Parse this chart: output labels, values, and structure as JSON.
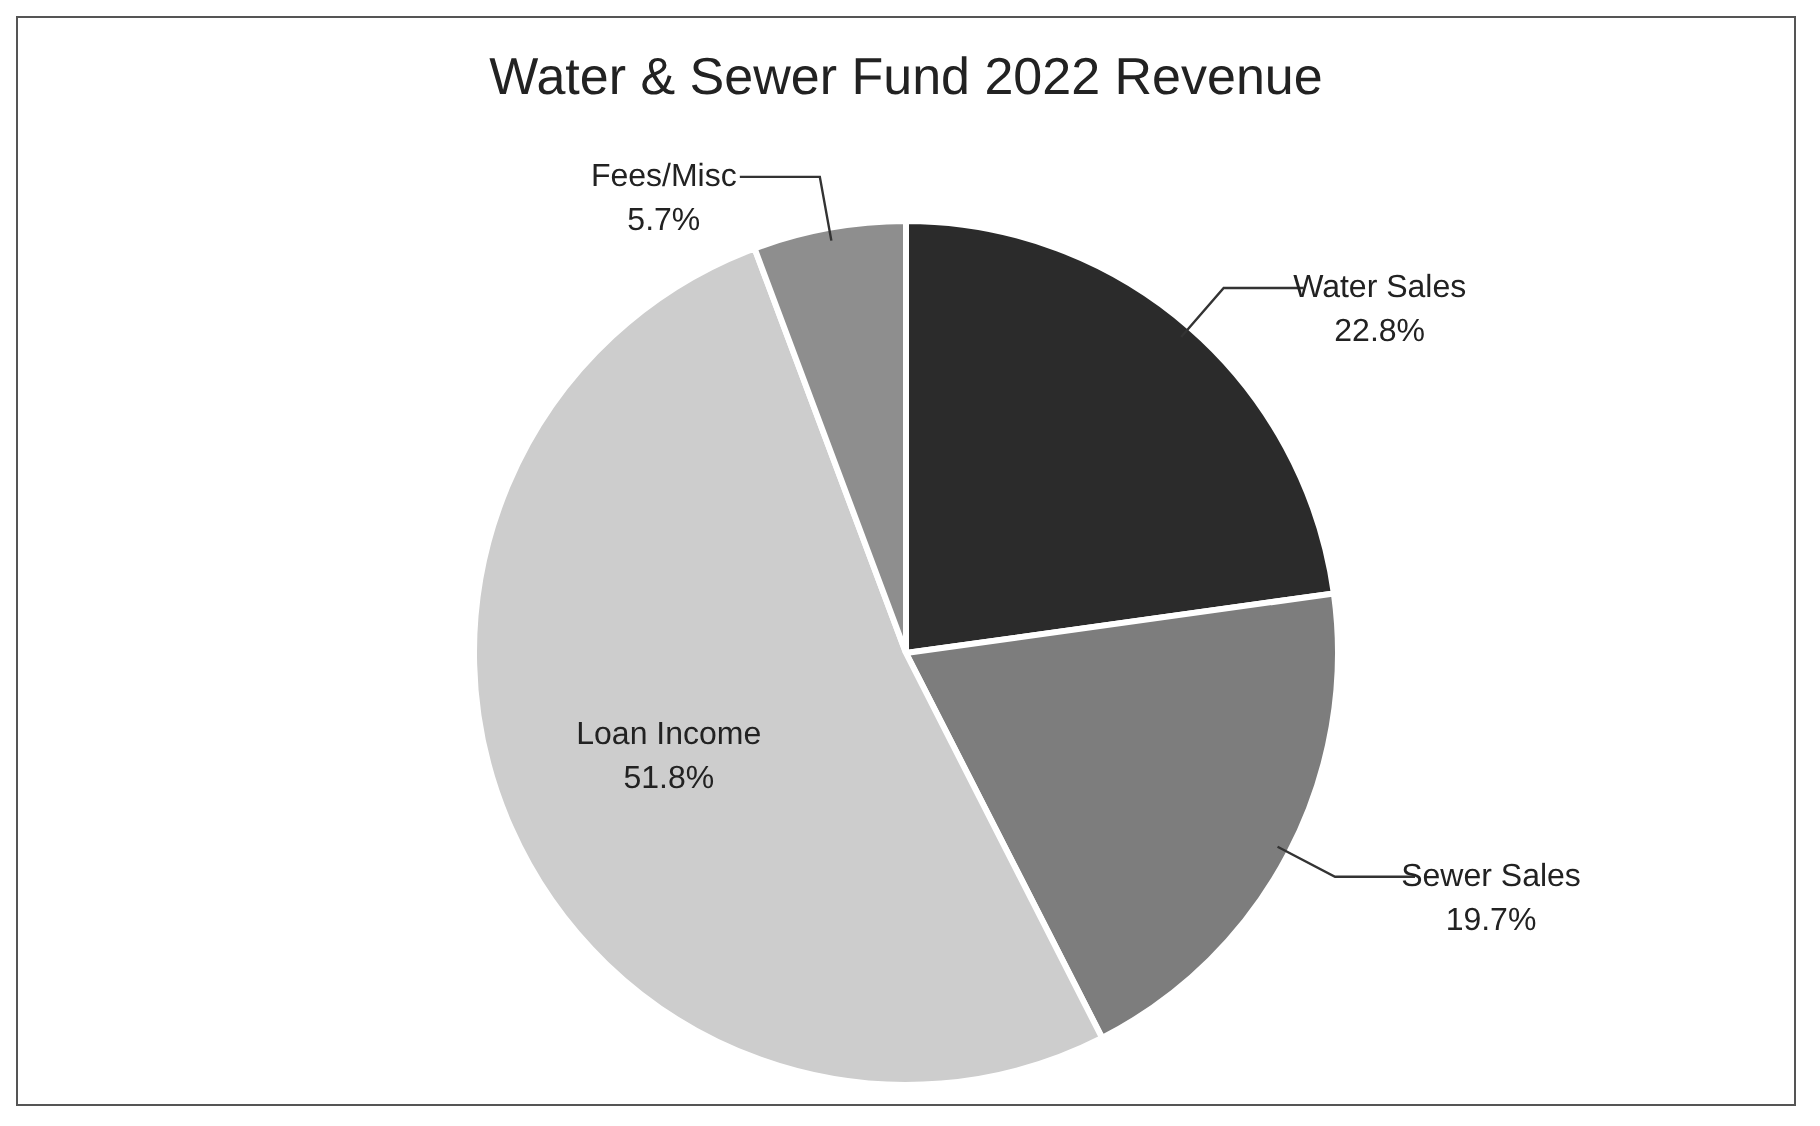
{
  "chart_data": {
    "type": "pie",
    "title": "Water & Sewer Fund 2022 Revenue",
    "categories": [
      "Water Sales",
      "Sewer Sales",
      "Loan Income",
      "Fees/Misc"
    ],
    "values": [
      22.8,
      19.7,
      51.8,
      5.7
    ],
    "value_labels": [
      "22.8%",
      "19.7%",
      "51.8%",
      "5.7%"
    ],
    "colors": [
      "#2b2b2b",
      "#7d7d7d",
      "#cdcdcd",
      "#8e8e8e"
    ],
    "legend": false
  }
}
